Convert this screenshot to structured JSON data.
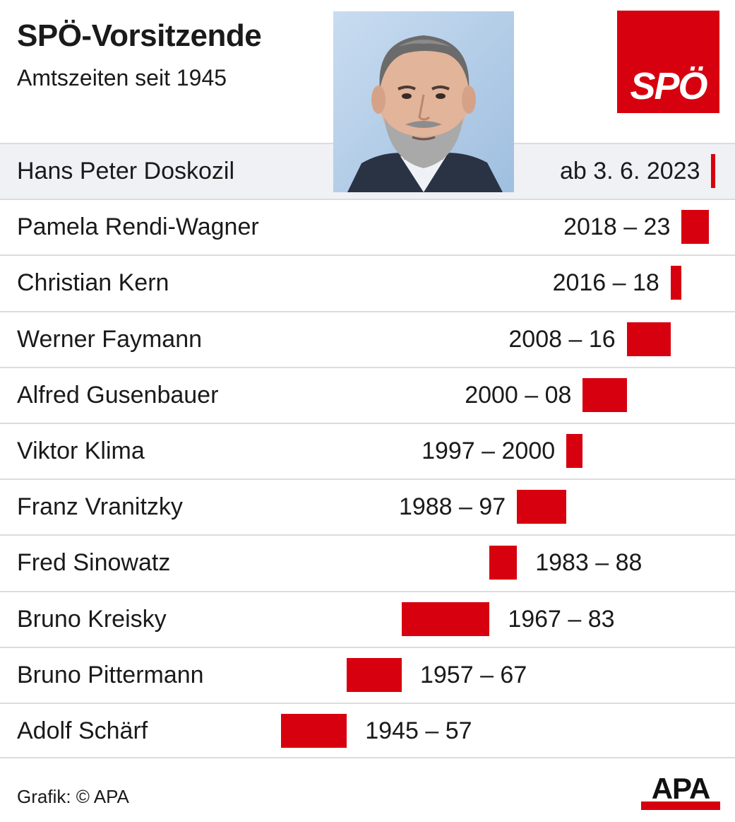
{
  "header": {
    "title": "SPÖ-Vorsitzende",
    "subtitle": "Amtszeiten seit 1945"
  },
  "logo": {
    "text": "SPÖ",
    "color": "#d7000f"
  },
  "photo": {
    "description_icon": "portrait-photo"
  },
  "chart_data": {
    "type": "bar",
    "subtype": "timeline-gantt",
    "title": "SPÖ-Vorsitzende",
    "subtitle": "Amtszeiten seit 1945",
    "bar_color": "#d7000f",
    "xlim": [
      1945,
      2024
    ],
    "rows": [
      {
        "name": "Hans Peter Doskozil",
        "label": "ab 3. 6. 2023",
        "start": 2023.42,
        "end": 2024,
        "highlight": true
      },
      {
        "name": "Pamela Rendi-Wagner",
        "label": "2018 – 23",
        "start": 2018,
        "end": 2023
      },
      {
        "name": "Christian Kern",
        "label": "2016 – 18",
        "start": 2016,
        "end": 2018
      },
      {
        "name": "Werner Faymann",
        "label": "2008 – 16",
        "start": 2008,
        "end": 2016
      },
      {
        "name": "Alfred Gusenbauer",
        "label": "2000 – 08",
        "start": 2000,
        "end": 2008
      },
      {
        "name": "Viktor Klima",
        "label": "1997 – 2000",
        "start": 1997,
        "end": 2000
      },
      {
        "name": "Franz Vranitzky",
        "label": "1988 – 97",
        "start": 1988,
        "end": 1997
      },
      {
        "name": "Fred Sinowatz",
        "label": "1983 – 88",
        "start": 1983,
        "end": 1988
      },
      {
        "name": "Bruno Kreisky",
        "label": "1967 – 83",
        "start": 1967,
        "end": 1983
      },
      {
        "name": "Bruno Pittermann",
        "label": "1957 – 67",
        "start": 1957,
        "end": 1967
      },
      {
        "name": "Adolf Schärf",
        "label": "1945 – 57",
        "start": 1945,
        "end": 1957
      }
    ]
  },
  "footer": {
    "source": "Grafik: © APA",
    "agency_logo": "APA"
  }
}
